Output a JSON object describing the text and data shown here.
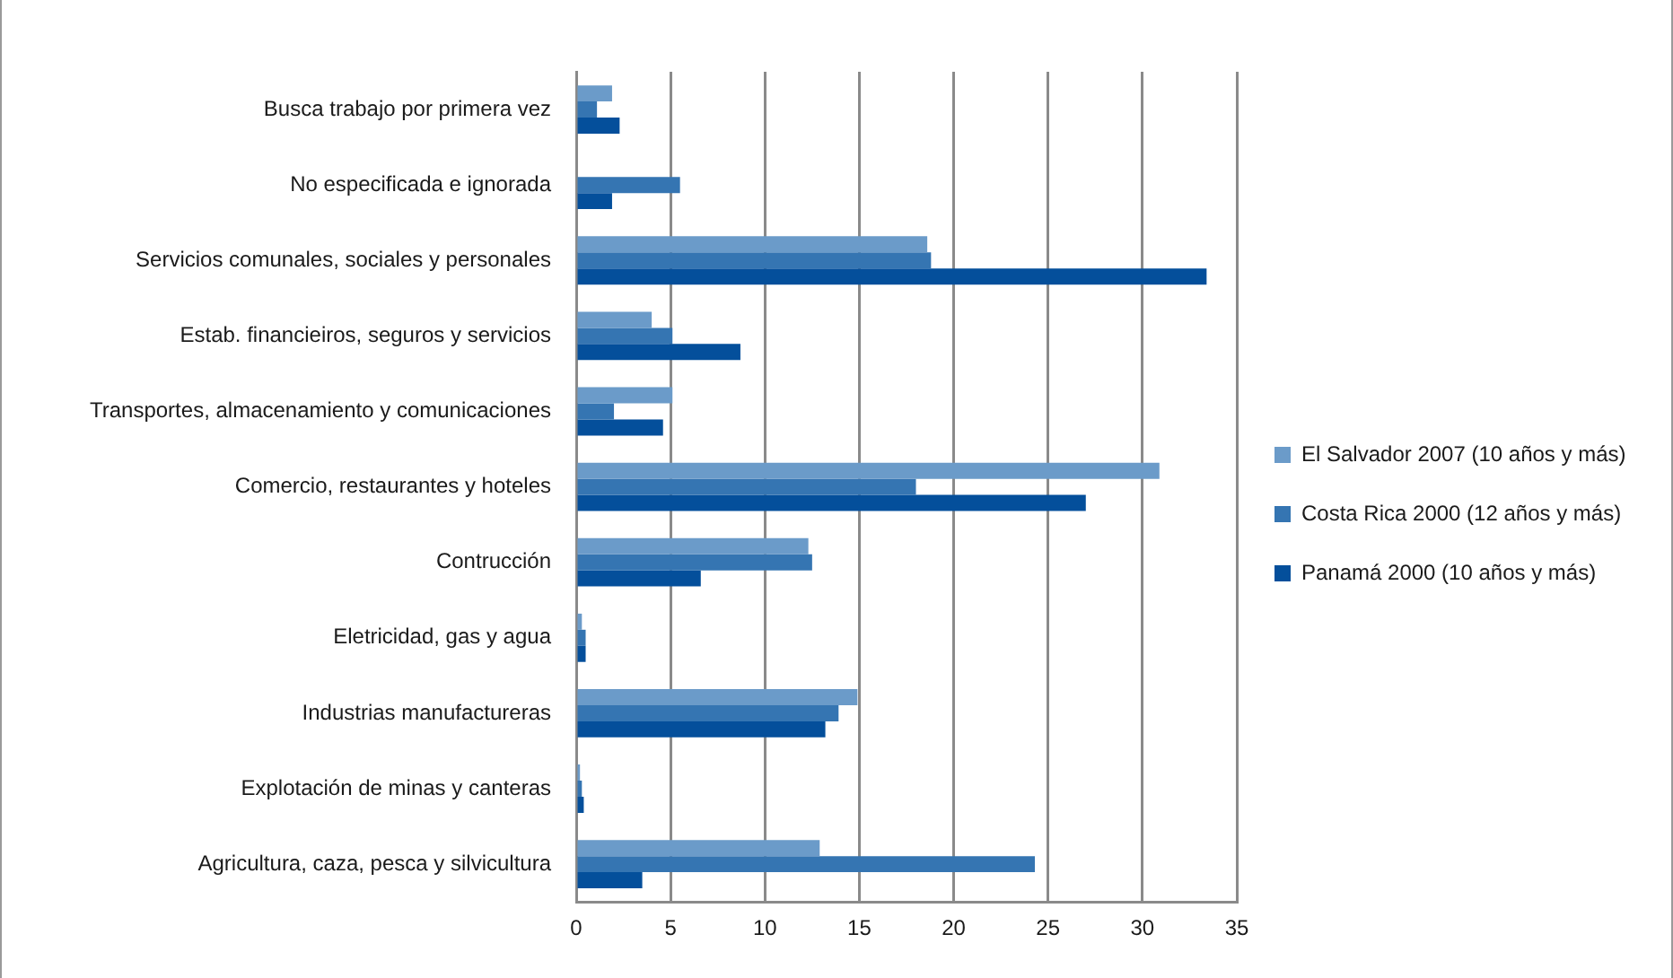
{
  "chart_data": {
    "type": "bar",
    "orientation": "horizontal",
    "categories": [
      "Busca trabajo por primera vez",
      "No especificada e ignorada",
      "Servicios comunales, sociales y personales",
      "Estab. financieiros, seguros y servicios",
      "Transportes, almacenamiento y comunicaciones",
      "Comercio, restaurantes y hoteles",
      "Contrucción",
      "Eletricidad, gas y agua",
      "Industrias manufactureras",
      "Explotación de minas y canteras",
      "Agricultura, caza, pesca y silvicultura"
    ],
    "series": [
      {
        "name": "El Salvador 2007 (10 años y más)",
        "color": "#6b9bc9",
        "values": [
          1.9,
          null,
          18.6,
          4.0,
          5.1,
          30.9,
          12.3,
          0.3,
          14.9,
          0.2,
          12.9
        ]
      },
      {
        "name": "Costa Rica 2000 (12 años y más)",
        "color": "#3575b2",
        "values": [
          1.1,
          5.5,
          18.8,
          5.1,
          2.0,
          18.0,
          12.5,
          0.5,
          13.9,
          0.3,
          24.3
        ]
      },
      {
        "name": "Panamá 2000 (10 años y más)",
        "color": "#044f9b",
        "values": [
          2.3,
          1.9,
          33.4,
          8.7,
          4.6,
          27.0,
          6.6,
          0.5,
          13.2,
          0.4,
          3.5
        ]
      }
    ],
    "xlim": [
      0,
      35
    ],
    "xticks": [
      0,
      5,
      10,
      15,
      20,
      25,
      30,
      35
    ],
    "grid": "x",
    "legend": "right"
  }
}
